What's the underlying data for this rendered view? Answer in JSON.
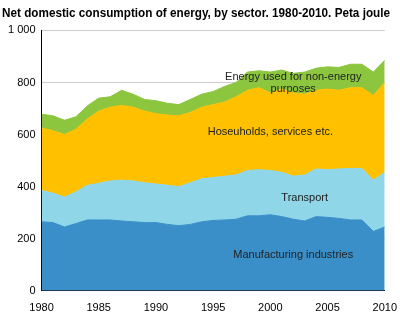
{
  "chart_data": {
    "type": "stacked_area",
    "title": "Net domestic consumption of energy, by sector. 1980-2010. Peta joule",
    "x": [
      1980,
      1981,
      1982,
      1983,
      1984,
      1985,
      1986,
      1987,
      1988,
      1989,
      1990,
      1991,
      1992,
      1993,
      1994,
      1995,
      1996,
      1997,
      1998,
      1999,
      2000,
      2001,
      2002,
      2003,
      2004,
      2005,
      2006,
      2007,
      2008,
      2009,
      2010
    ],
    "series": [
      {
        "name": "Manufacturing industries",
        "color": "#3a8fc8",
        "values": [
          265,
          262,
          245,
          258,
          272,
          272,
          272,
          268,
          265,
          262,
          262,
          255,
          250,
          255,
          265,
          270,
          272,
          275,
          288,
          288,
          292,
          285,
          275,
          268,
          285,
          282,
          278,
          272,
          272,
          228,
          245
        ]
      },
      {
        "name": "Transport",
        "color": "#8ed6e8",
        "values": [
          120,
          113,
          115,
          122,
          133,
          141,
          150,
          157,
          157,
          153,
          148,
          150,
          150,
          160,
          165,
          165,
          168,
          170,
          174,
          177,
          170,
          170,
          165,
          177,
          183,
          183,
          190,
          198,
          198,
          197,
          210
        ]
      },
      {
        "name": "Hoseuholds, services etc.",
        "color": "#ffc000",
        "values": [
          240,
          240,
          240,
          240,
          255,
          277,
          283,
          287,
          283,
          275,
          270,
          270,
          272,
          270,
          275,
          280,
          285,
          300,
          308,
          315,
          298,
          320,
          320,
          310,
          302,
          310,
          302,
          310,
          310,
          325,
          345
        ]
      },
      {
        "name": "Energy used for non-energy purposes",
        "color": "#8cc63f",
        "values": [
          53,
          57,
          55,
          48,
          50,
          50,
          40,
          58,
          50,
          45,
          50,
          45,
          43,
          50,
          50,
          50,
          60,
          55,
          70,
          65,
          80,
          73,
          75,
          85,
          85,
          85,
          88,
          90,
          90,
          90,
          85
        ]
      }
    ],
    "stacked": true,
    "xlim": [
      1980,
      2010
    ],
    "xticks": [
      1980,
      1985,
      1990,
      1995,
      2000,
      2005,
      2010
    ],
    "ylim": [
      0,
      1000
    ],
    "yticks": [
      0,
      200,
      400,
      600,
      800,
      {
        "value": 1000,
        "label": "1 000"
      }
    ],
    "grid": true
  }
}
